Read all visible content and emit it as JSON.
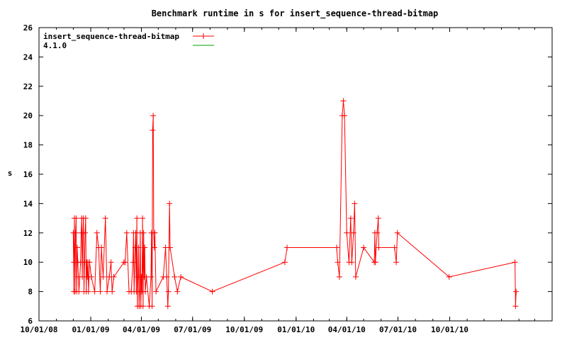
{
  "chart_data": {
    "type": "line",
    "title": "Benchmark runtime in s for insert_sequence-thread-bitmap",
    "xlabel": "",
    "ylabel": "s",
    "xlim": [
      "2008-10-01",
      "2011-04-01"
    ],
    "ylim": [
      6,
      26
    ],
    "grid": false,
    "legend_position": "top-left",
    "x_tick_labels": [
      "10/01/08",
      "01/01/09",
      "04/01/09",
      "07/01/09",
      "10/01/09",
      "01/01/10",
      "04/01/10",
      "07/01/10",
      "10/01/10"
    ],
    "x_ticks": [
      "2008-10-01",
      "2009-01-01",
      "2009-04-01",
      "2009-07-01",
      "2009-10-01",
      "2010-01-01",
      "2010-04-01",
      "2010-07-01",
      "2010-10-01"
    ],
    "y_ticks": [
      6,
      8,
      10,
      12,
      14,
      16,
      18,
      20,
      22,
      24,
      26
    ],
    "series": [
      {
        "name": "insert_sequence-thread-bitmap",
        "color": "#ff0000",
        "marker": "plus",
        "points": [
          [
            "2008-12-01",
            12
          ],
          [
            "2008-12-02",
            8
          ],
          [
            "2008-12-02",
            10
          ],
          [
            "2008-12-03",
            13
          ],
          [
            "2008-12-04",
            8
          ],
          [
            "2008-12-05",
            12
          ],
          [
            "2008-12-06",
            13
          ],
          [
            "2008-12-07",
            8
          ],
          [
            "2008-12-08",
            11
          ],
          [
            "2008-12-09",
            10
          ],
          [
            "2008-12-10",
            9
          ],
          [
            "2008-12-11",
            8
          ],
          [
            "2008-12-14",
            10
          ],
          [
            "2008-12-15",
            12
          ],
          [
            "2008-12-16",
            13
          ],
          [
            "2008-12-17",
            9
          ],
          [
            "2008-12-18",
            12
          ],
          [
            "2008-12-19",
            13
          ],
          [
            "2008-12-20",
            8
          ],
          [
            "2008-12-21",
            10
          ],
          [
            "2008-12-22",
            12
          ],
          [
            "2008-12-23",
            13
          ],
          [
            "2008-12-24",
            8
          ],
          [
            "2008-12-25",
            10
          ],
          [
            "2008-12-26",
            9
          ],
          [
            "2008-12-27",
            10
          ],
          [
            "2008-12-28",
            8
          ],
          [
            "2008-12-30",
            10
          ],
          [
            "2009-01-02",
            9
          ],
          [
            "2009-01-08",
            8
          ],
          [
            "2009-01-12",
            12
          ],
          [
            "2009-01-15",
            11
          ],
          [
            "2009-01-18",
            8
          ],
          [
            "2009-01-20",
            11
          ],
          [
            "2009-01-23",
            9
          ],
          [
            "2009-01-27",
            13
          ],
          [
            "2009-01-30",
            8
          ],
          [
            "2009-02-03",
            9
          ],
          [
            "2009-02-06",
            10
          ],
          [
            "2009-02-08",
            8
          ],
          [
            "2009-02-11",
            9
          ],
          [
            "2009-03-01",
            10
          ],
          [
            "2009-03-03",
            10
          ],
          [
            "2009-03-06",
            12
          ],
          [
            "2009-03-10",
            8
          ],
          [
            "2009-03-14",
            8
          ],
          [
            "2009-03-17",
            10
          ],
          [
            "2009-03-18",
            12
          ],
          [
            "2009-03-19",
            8
          ],
          [
            "2009-03-21",
            11
          ],
          [
            "2009-03-22",
            12
          ],
          [
            "2009-03-23",
            8
          ],
          [
            "2009-03-24",
            13
          ],
          [
            "2009-03-25",
            7
          ],
          [
            "2009-03-26",
            9
          ],
          [
            "2009-03-27",
            11
          ],
          [
            "2009-03-28",
            7
          ],
          [
            "2009-03-29",
            8
          ],
          [
            "2009-03-30",
            12
          ],
          [
            "2009-03-31",
            7
          ],
          [
            "2009-04-01",
            9
          ],
          [
            "2009-04-02",
            8
          ],
          [
            "2009-04-03",
            13
          ],
          [
            "2009-04-04",
            7
          ],
          [
            "2009-04-05",
            12
          ],
          [
            "2009-04-06",
            9
          ],
          [
            "2009-04-07",
            11
          ],
          [
            "2009-04-08",
            8
          ],
          [
            "2009-04-10",
            9
          ],
          [
            "2009-04-15",
            7
          ],
          [
            "2009-04-18",
            9
          ],
          [
            "2009-04-19",
            12
          ],
          [
            "2009-04-20",
            7
          ],
          [
            "2009-04-21",
            19
          ],
          [
            "2009-04-22",
            20
          ],
          [
            "2009-04-23",
            12
          ],
          [
            "2009-04-24",
            11
          ],
          [
            "2009-04-25",
            12
          ],
          [
            "2009-04-27",
            8
          ],
          [
            "2009-05-10",
            9
          ],
          [
            "2009-05-14",
            11
          ],
          [
            "2009-05-16",
            9
          ],
          [
            "2009-05-18",
            7
          ],
          [
            "2009-05-19",
            8
          ],
          [
            "2009-05-21",
            14
          ],
          [
            "2009-05-22",
            11
          ],
          [
            "2009-05-30",
            9
          ],
          [
            "2009-06-04",
            8
          ],
          [
            "2009-06-10",
            9
          ],
          [
            "2009-08-05",
            8
          ],
          [
            "2009-12-12",
            10
          ],
          [
            "2009-12-16",
            11
          ],
          [
            "2010-03-14",
            11
          ],
          [
            "2010-03-16",
            10
          ],
          [
            "2010-03-19",
            9
          ],
          [
            "2010-03-24",
            20
          ],
          [
            "2010-03-26",
            21
          ],
          [
            "2010-03-28",
            20
          ],
          [
            "2010-04-01",
            12
          ],
          [
            "2010-04-05",
            10
          ],
          [
            "2010-04-08",
            13
          ],
          [
            "2010-04-10",
            10
          ],
          [
            "2010-04-13",
            12
          ],
          [
            "2010-04-15",
            14
          ],
          [
            "2010-04-17",
            9
          ],
          [
            "2010-05-01",
            11
          ],
          [
            "2010-05-20",
            10
          ],
          [
            "2010-05-21",
            12
          ],
          [
            "2010-05-22",
            10
          ],
          [
            "2010-05-25",
            12
          ],
          [
            "2010-05-27",
            13
          ],
          [
            "2010-05-28",
            11
          ],
          [
            "2010-06-25",
            11
          ],
          [
            "2010-06-28",
            10
          ],
          [
            "2010-06-30",
            12
          ],
          [
            "2010-09-30",
            9
          ],
          [
            "2011-01-25",
            10
          ],
          [
            "2011-01-26",
            7
          ],
          [
            "2011-01-27",
            8
          ]
        ]
      },
      {
        "name": "4.1.0",
        "color": "#00a000",
        "marker": "none",
        "points": []
      }
    ]
  }
}
